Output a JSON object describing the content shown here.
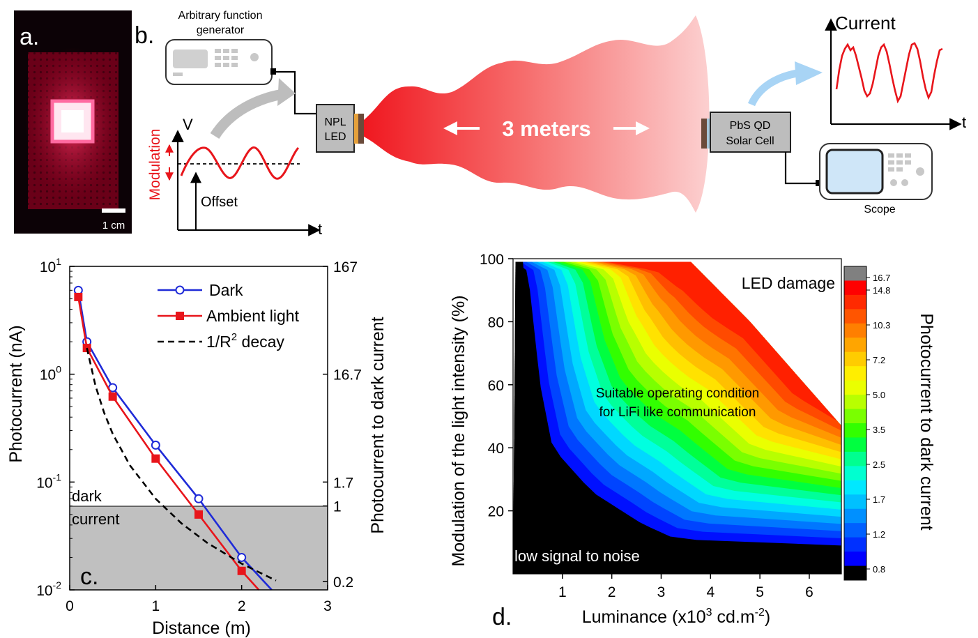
{
  "panel_letters": {
    "a": "a.",
    "b": "b.",
    "c": "c.",
    "d": "d."
  },
  "panel_a": {
    "scale_bar": "1 cm"
  },
  "panel_b": {
    "afg_label_1": "Arbitrary function",
    "afg_label_2": "generator",
    "led_label_1": "NPL",
    "led_label_2": "LED",
    "distance": "3 meters",
    "cell_label_1": "PbS QD",
    "cell_label_2": "Solar Cell",
    "scope_label": "Scope",
    "mod_v": "V",
    "mod_label": "Modulation",
    "offset_label": "Offset",
    "mod_t": "t",
    "current_label": "Current",
    "current_t": "t"
  },
  "colors": {
    "dark_series": "#1f2bd8",
    "ambient_series": "#e8151b",
    "decay_series": "#000000",
    "dark_current_band": "#c0c0c0",
    "led_red": "#e8151b",
    "arrow_blue": "#a8d4f5",
    "scope_screen": "#cfe6f8"
  },
  "chart_data": [
    {
      "type": "line",
      "panel": "c",
      "xlabel": "Distance (m)",
      "ylabel": "Photocurrent (nA)",
      "ylabel_right": "Photocurrent to dark current",
      "xlim": [
        0,
        3
      ],
      "ylim": [
        0.01,
        10
      ],
      "y_scale": "log",
      "x_ticks": [
        "0",
        "1",
        "2",
        "3"
      ],
      "y_ticks": [
        {
          "value": 10,
          "base": "10",
          "exp": "1"
        },
        {
          "value": 1,
          "base": "10",
          "exp": "0"
        },
        {
          "value": 0.1,
          "base": "10",
          "exp": "-1"
        },
        {
          "value": 0.01,
          "base": "10",
          "exp": "-2"
        }
      ],
      "right_ticks": [
        {
          "value": 10,
          "label": "167"
        },
        {
          "value": 1,
          "label": "16.7"
        },
        {
          "value": 0.1,
          "label": "1.7"
        },
        {
          "value": 0.06,
          "label": "1"
        },
        {
          "value": 0.012,
          "label": "0.2"
        }
      ],
      "dark_current_level": 0.06,
      "band_label_1": "dark",
      "band_label_2": "current",
      "legend_position": "top-right",
      "series": [
        {
          "name": "Dark",
          "marker": "open-circle",
          "x": [
            0.1,
            0.2,
            0.5,
            1.0,
            1.5,
            2.0,
            2.35
          ],
          "y": [
            6.0,
            2.0,
            0.75,
            0.22,
            0.07,
            0.02,
            0.01
          ]
        },
        {
          "name": "Ambient light",
          "marker": "square",
          "x": [
            0.1,
            0.2,
            0.5,
            1.0,
            1.5,
            2.0,
            2.2
          ],
          "y": [
            5.2,
            1.75,
            0.62,
            0.165,
            0.05,
            0.015,
            0.01
          ]
        },
        {
          "name": "1/R",
          "name_sup": "2",
          "name_suffix": " decay",
          "line": "dashed",
          "x": [
            0.2,
            0.3,
            0.4,
            0.5,
            0.7,
            1.0,
            1.3,
            1.6,
            2.0,
            2.4
          ],
          "y": [
            1.75,
            0.78,
            0.44,
            0.28,
            0.143,
            0.07,
            0.0414,
            0.0273,
            0.0175,
            0.0122
          ]
        }
      ]
    },
    {
      "type": "heatmap",
      "panel": "d",
      "xlabel_base": "Luminance (x10",
      "xlabel_sup": "3",
      "xlabel_mid": " cd.m",
      "xlabel_sup2": "-2",
      "xlabel_end": ")",
      "ylabel": "Modulation of the light intensity (%)",
      "colorbar_label": "Photocurrent to dark current",
      "xlim": [
        0,
        6.65
      ],
      "ylim": [
        0,
        100
      ],
      "x_ticks": [
        1,
        2,
        3,
        4,
        5,
        6
      ],
      "y_ticks": [
        20,
        40,
        60,
        80,
        100
      ],
      "colorbar_ticks": [
        "16.7",
        "14.8",
        "10.3",
        "7.2",
        "5.0",
        "3.5",
        "2.5",
        "1.7",
        "1.2",
        "0.8"
      ],
      "annotations": {
        "damage": "LED damage",
        "suitable_1": "Suitable operating condition",
        "suitable_2": "for LiFi like communication",
        "low": "low signal to noise"
      }
    }
  ]
}
